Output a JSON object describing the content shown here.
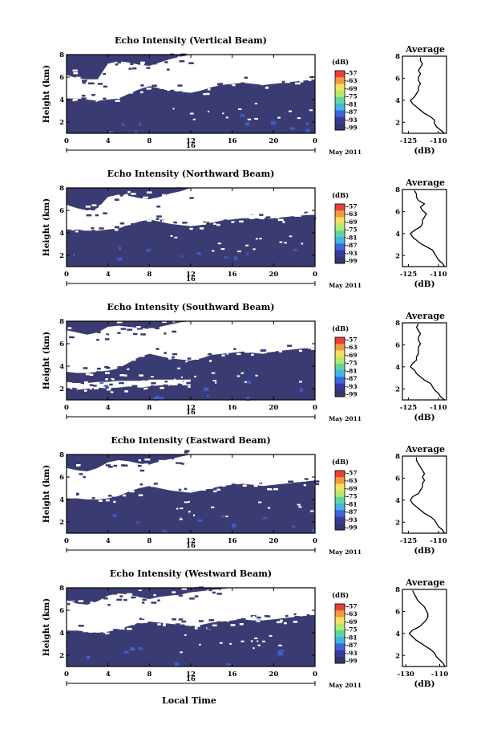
{
  "figure": {
    "xlabel": "Local Time",
    "day_label": "16",
    "date_label": "May 2011",
    "colorbar_unit": "(dB)",
    "colorbar_ticks": [
      "-57",
      "-63",
      "-69",
      "-75",
      "-81",
      "-87",
      "-93",
      "-99"
    ],
    "colorbar_colors": [
      "#e8413a",
      "#f39a3c",
      "#f5e060",
      "#b8e86a",
      "#5fd6a0",
      "#3fb6e6",
      "#3f66d8",
      "#3a3a9e",
      "#36366e"
    ],
    "background_color": "#3b3b73",
    "weak_echo_color": "#3e63d6"
  },
  "chart_data": [
    {
      "type": "heatmap",
      "title": "Echo Intensity (Vertical Beam)",
      "ylabel": "Height (km)",
      "x_ticks": [
        "0",
        "4",
        "8",
        "12",
        "16",
        "20",
        "0"
      ],
      "y_ticks": [
        "2",
        "4",
        "6",
        "8"
      ],
      "xlim_hours": [
        0,
        24
      ],
      "ylim_km": [
        1,
        8
      ],
      "gap_regions": [
        {
          "t0": 0,
          "t1": 24,
          "h_low": [
            4.1,
            4.1,
            4.0,
            3.9,
            4.0,
            4.1,
            4.5,
            4.9,
            5.2,
            5.0,
            4.8,
            4.7,
            4.6,
            4.8,
            5.1,
            5.3,
            5.4,
            5.5,
            5.4,
            5.3,
            5.4,
            5.5,
            5.6,
            5.7,
            5.8
          ],
          "h_high": [
            6.2,
            5.9,
            5.8,
            5.8,
            7.2,
            7.4,
            7.3,
            7.1,
            7.0,
            7.3,
            7.6,
            7.8,
            8.0,
            8.0,
            8.0,
            8.0,
            8.0,
            8.0,
            8.0,
            8.0,
            8.0,
            8.0,
            8.0,
            8.0,
            8.0
          ]
        }
      ],
      "avg_profile": {
        "title": "Average",
        "xlabel": "(dB)",
        "x_ticks": [
          "-125",
          "-110"
        ],
        "xlim": [
          -128,
          -106
        ],
        "ylim": [
          1,
          8
        ],
        "y_ticks": [
          "2",
          "4",
          "6",
          "8"
        ],
        "height": [
          1.0,
          1.3,
          1.6,
          1.9,
          2.2,
          2.5,
          2.8,
          3.1,
          3.4,
          3.7,
          4.0,
          4.3,
          4.6,
          4.9,
          5.2,
          5.5,
          5.8,
          6.1,
          6.4,
          6.7,
          7.0,
          7.3,
          7.6,
          7.9
        ],
        "value": [
          -107,
          -109,
          -111,
          -112,
          -112,
          -114,
          -117,
          -119,
          -121,
          -123,
          -124,
          -122,
          -121,
          -120,
          -120,
          -119,
          -120,
          -120,
          -119,
          -120,
          -119,
          -118,
          -119,
          -119
        ]
      }
    },
    {
      "type": "heatmap",
      "title": "Echo Intensity (Northward Beam)",
      "ylabel": "Height (km)",
      "x_ticks": [
        "0",
        "4",
        "8",
        "12",
        "16",
        "20",
        "0"
      ],
      "y_ticks": [
        "2",
        "4",
        "6",
        "8"
      ],
      "xlim_hours": [
        0,
        24
      ],
      "ylim_km": [
        1,
        8
      ],
      "gap_regions": [
        {
          "t0": 0,
          "t1": 24,
          "h_low": [
            4.3,
            4.3,
            4.2,
            4.2,
            4.3,
            4.4,
            4.7,
            5.0,
            5.2,
            5.0,
            4.8,
            4.7,
            4.6,
            4.7,
            4.9,
            5.1,
            5.2,
            5.3,
            5.3,
            5.2,
            5.3,
            5.4,
            5.5,
            5.6,
            5.6
          ],
          "h_high": [
            6.5,
            6.2,
            6.0,
            6.2,
            7.2,
            7.4,
            7.3,
            7.1,
            7.0,
            7.2,
            7.5,
            7.7,
            8.0,
            8.0,
            8.0,
            8.0,
            8.0,
            8.0,
            8.0,
            8.0,
            8.0,
            8.0,
            8.0,
            8.0,
            8.0
          ]
        }
      ],
      "avg_profile": {
        "title": "Average",
        "xlabel": "(dB)",
        "x_ticks": [
          "-125",
          "-110"
        ],
        "xlim": [
          -128,
          -106
        ],
        "ylim": [
          1,
          8
        ],
        "y_ticks": [
          "2",
          "4",
          "6",
          "8"
        ],
        "height": [
          1.0,
          1.3,
          1.6,
          1.9,
          2.2,
          2.5,
          2.8,
          3.1,
          3.4,
          3.7,
          4.0,
          4.3,
          4.6,
          4.9,
          5.2,
          5.5,
          5.8,
          6.1,
          6.4,
          6.7,
          7.0,
          7.3,
          7.6,
          7.9
        ],
        "value": [
          -107,
          -108,
          -110,
          -111,
          -112,
          -113,
          -116,
          -119,
          -121,
          -123,
          -124,
          -122,
          -119,
          -118,
          -118,
          -117,
          -116,
          -118,
          -119,
          -117,
          -120,
          -121,
          -121,
          -122
        ]
      }
    },
    {
      "type": "heatmap",
      "title": "Echo Intensity (Southward Beam)",
      "ylabel": "Height (km)",
      "x_ticks": [
        "0",
        "4",
        "8",
        "12",
        "16",
        "20",
        "0"
      ],
      "y_ticks": [
        "2",
        "4",
        "6",
        "8"
      ],
      "xlim_hours": [
        0,
        24
      ],
      "ylim_km": [
        1,
        8
      ],
      "gap_regions": [
        {
          "t0": 0,
          "t1": 24,
          "h_low": [
            3.5,
            3.4,
            3.4,
            3.5,
            3.6,
            3.8,
            4.3,
            4.8,
            5.1,
            4.9,
            4.7,
            4.6,
            4.5,
            4.7,
            5.0,
            5.1,
            5.2,
            5.3,
            5.2,
            5.1,
            5.3,
            5.4,
            5.5,
            5.6,
            5.6
          ],
          "h_high": [
            7.2,
            7.0,
            6.8,
            7.0,
            7.5,
            7.6,
            7.5,
            7.4,
            7.3,
            7.5,
            7.7,
            7.9,
            8.0,
            8.0,
            8.0,
            8.0,
            8.0,
            8.0,
            8.0,
            8.0,
            8.0,
            8.0,
            8.0,
            8.0,
            8.0
          ]
        },
        {
          "t0": 0,
          "t1": 12,
          "h_low": [
            2.0,
            1.9,
            2.0,
            2.1,
            2.0,
            2.1,
            2.2,
            2.1,
            2.2,
            2.3,
            2.3,
            2.3,
            2.3
          ],
          "h_high": [
            2.6,
            2.5,
            2.5,
            2.6,
            2.6,
            2.7,
            2.7,
            2.7,
            2.8,
            2.8,
            2.8,
            2.8,
            2.8
          ]
        }
      ],
      "avg_profile": {
        "title": "Average",
        "xlabel": "(dB)",
        "x_ticks": [
          "-125",
          "-110"
        ],
        "xlim": [
          -128,
          -106
        ],
        "ylim": [
          1,
          8
        ],
        "y_ticks": [
          "2",
          "4",
          "6",
          "8"
        ],
        "height": [
          1.0,
          1.3,
          1.6,
          1.9,
          2.2,
          2.5,
          2.8,
          3.1,
          3.4,
          3.7,
          4.0,
          4.3,
          4.6,
          4.9,
          5.2,
          5.5,
          5.8,
          6.1,
          6.4,
          6.7,
          7.0,
          7.3,
          7.6,
          7.9
        ],
        "value": [
          -107,
          -109,
          -110,
          -112,
          -113,
          -114,
          -117,
          -119,
          -121,
          -122,
          -124,
          -123,
          -121,
          -121,
          -120,
          -120,
          -120,
          -119,
          -120,
          -120,
          -119,
          -120,
          -121,
          -120
        ]
      }
    },
    {
      "type": "heatmap",
      "title": "Echo Intensity (Eastward Beam)",
      "ylabel": "Height (km)",
      "x_ticks": [
        "0",
        "4",
        "8",
        "12",
        "16",
        "20",
        "0"
      ],
      "y_ticks": [
        "2",
        "4",
        "6",
        "8"
      ],
      "xlim_hours": [
        0,
        24
      ],
      "ylim_km": [
        1,
        8
      ],
      "gap_regions": [
        {
          "t0": 0,
          "t1": 24,
          "h_low": [
            4.1,
            4.1,
            4.0,
            4.0,
            4.1,
            4.3,
            4.7,
            5.0,
            5.2,
            5.0,
            4.8,
            4.7,
            4.6,
            4.8,
            5.0,
            5.2,
            5.3,
            5.4,
            5.3,
            5.2,
            5.3,
            5.4,
            5.5,
            5.6,
            5.7
          ],
          "h_high": [
            6.8,
            6.6,
            6.5,
            6.8,
            7.3,
            7.5,
            7.4,
            7.2,
            7.1,
            7.4,
            7.6,
            7.8,
            8.0,
            8.0,
            8.0,
            8.0,
            8.0,
            8.0,
            8.0,
            8.0,
            8.0,
            8.0,
            8.0,
            8.0,
            8.0
          ]
        }
      ],
      "avg_profile": {
        "title": "Average",
        "xlabel": "(dB)",
        "x_ticks": [
          "-125",
          "-110"
        ],
        "xlim": [
          -128,
          -106
        ],
        "ylim": [
          1,
          8
        ],
        "y_ticks": [
          "2",
          "4",
          "6",
          "8"
        ],
        "height": [
          1.0,
          1.3,
          1.6,
          1.9,
          2.2,
          2.5,
          2.8,
          3.1,
          3.4,
          3.7,
          4.0,
          4.3,
          4.6,
          4.9,
          5.2,
          5.5,
          5.8,
          6.1,
          6.4,
          6.7,
          7.0,
          7.3,
          7.6,
          7.9
        ],
        "value": [
          -107,
          -108,
          -110,
          -111,
          -112,
          -114,
          -117,
          -119,
          -121,
          -123,
          -124,
          -123,
          -120,
          -119,
          -118,
          -118,
          -117,
          -118,
          -117,
          -118,
          -119,
          -120,
          -121,
          -121
        ]
      }
    },
    {
      "type": "heatmap",
      "title": "Echo Intensity (Westward Beam)",
      "ylabel": "Height (km)",
      "x_ticks": [
        "0",
        "4",
        "8",
        "12",
        "16",
        "20",
        "0"
      ],
      "y_ticks": [
        "2",
        "4",
        "6",
        "8"
      ],
      "xlim_hours": [
        0,
        24
      ],
      "ylim_km": [
        1,
        8
      ],
      "gap_regions": [
        {
          "t0": 0,
          "t1": 24,
          "h_low": [
            4.2,
            4.2,
            4.1,
            4.0,
            4.1,
            4.3,
            4.6,
            4.9,
            5.0,
            4.9,
            4.8,
            4.7,
            4.6,
            4.7,
            4.9,
            5.0,
            5.1,
            5.2,
            5.1,
            5.1,
            5.2,
            5.3,
            5.4,
            5.5,
            5.6
          ],
          "h_high": [
            6.9,
            6.6,
            6.5,
            6.8,
            7.3,
            7.5,
            7.4,
            7.2,
            7.0,
            7.2,
            7.3,
            7.4,
            7.6,
            7.7,
            7.8,
            7.9,
            8.0,
            8.0,
            8.0,
            8.0,
            8.0,
            8.0,
            8.0,
            8.0,
            8.0
          ]
        }
      ],
      "avg_profile": {
        "title": "Average",
        "xlabel": "(dB)",
        "x_ticks": [
          "-130",
          "-110"
        ],
        "xlim": [
          -132,
          -106
        ],
        "ylim": [
          1,
          8
        ],
        "y_ticks": [
          "2",
          "4",
          "6",
          "8"
        ],
        "height": [
          1.0,
          1.3,
          1.6,
          1.9,
          2.2,
          2.5,
          2.8,
          3.1,
          3.4,
          3.7,
          4.0,
          4.3,
          4.6,
          4.9,
          5.2,
          5.5,
          5.8,
          6.1,
          6.4,
          6.7,
          7.0,
          7.3,
          7.6,
          7.9
        ],
        "value": [
          -107,
          -108,
          -110,
          -112,
          -113,
          -115,
          -118,
          -121,
          -124,
          -126,
          -128,
          -126,
          -122,
          -120,
          -118,
          -117,
          -117,
          -118,
          -119,
          -121,
          -123,
          -124,
          -125,
          -126
        ]
      }
    }
  ]
}
